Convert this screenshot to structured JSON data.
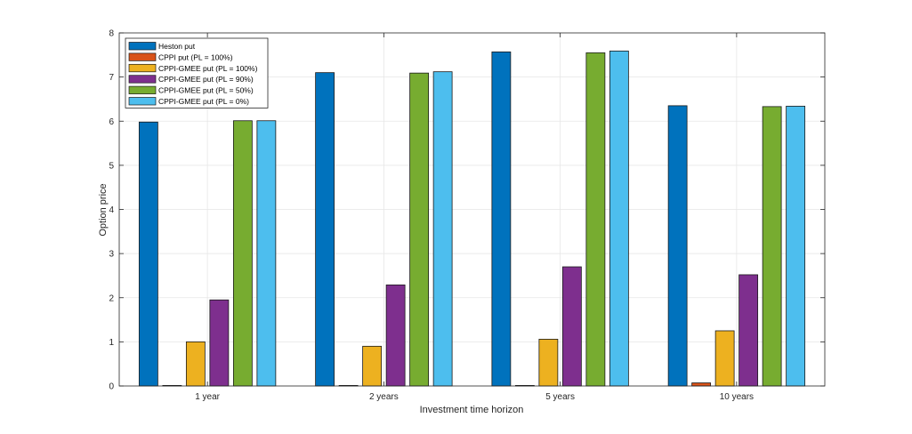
{
  "chart_data": {
    "type": "bar",
    "title": "",
    "xlabel": "Investment time horizon",
    "ylabel": "Option price",
    "categories": [
      "1 year",
      "2 years",
      "5 years",
      "10 years"
    ],
    "ylim": [
      0,
      8
    ],
    "yticks": [
      0,
      1,
      2,
      3,
      4,
      5,
      6,
      7,
      8
    ],
    "grid": true,
    "legend_position": "top-left",
    "series": [
      {
        "name": "Heston put",
        "color": "#0072BD",
        "values": [
          5.98,
          7.1,
          7.57,
          6.35
        ]
      },
      {
        "name": "CPPI put (PL = 100%)",
        "color": "#D95319",
        "values": [
          0.0,
          0.0,
          0.01,
          0.07
        ]
      },
      {
        "name": "CPPI-GMEE put (PL = 100%)",
        "color": "#EDB120",
        "values": [
          1.0,
          0.9,
          1.06,
          1.25
        ]
      },
      {
        "name": "CPPI-GMEE put (PL = 90%)",
        "color": "#7E2F8E",
        "values": [
          1.95,
          2.29,
          2.7,
          2.52
        ]
      },
      {
        "name": "CPPI-GMEE put (PL = 50%)",
        "color": "#77AC30",
        "values": [
          6.01,
          7.09,
          7.55,
          6.33
        ]
      },
      {
        "name": "CPPI-GMEE put (PL = 0%)",
        "color": "#4DBEEE",
        "values": [
          6.01,
          7.12,
          7.59,
          6.34
        ]
      }
    ]
  }
}
